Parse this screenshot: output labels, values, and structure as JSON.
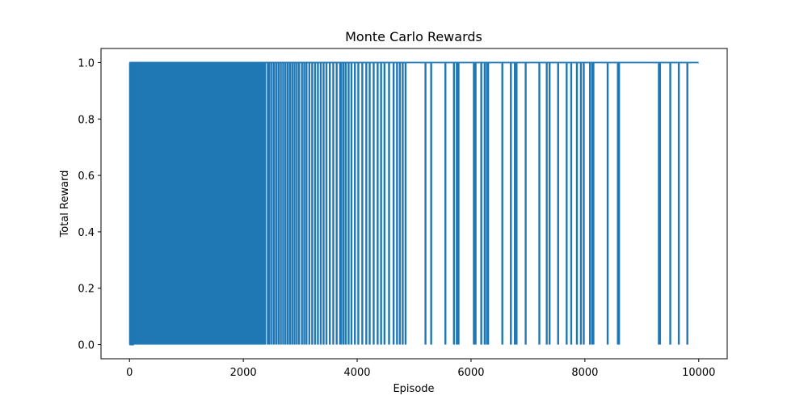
{
  "chart_data": {
    "type": "line",
    "title": "Monte Carlo Rewards",
    "xlabel": "Episode",
    "ylabel": "Total Reward",
    "xlim": [
      -500,
      10500
    ],
    "ylim": [
      -0.05,
      1.05
    ],
    "xticks": [
      0,
      2000,
      4000,
      6000,
      8000,
      10000
    ],
    "yticks": [
      0.0,
      0.2,
      0.4,
      0.6,
      0.8,
      1.0
    ],
    "xtick_labels": [
      "0",
      "2000",
      "4000",
      "6000",
      "8000",
      "10000"
    ],
    "ytick_labels": [
      "0.0",
      "0.2",
      "0.4",
      "0.6",
      "0.8",
      "1.0"
    ],
    "grid": false,
    "line_color": "#1f77b4",
    "series": [
      {
        "x_range": [
          0,
          9999
        ],
        "value_levels": [
          0,
          1
        ],
        "dense_fill_range": [
          80,
          2400
        ],
        "dip_episodes": [
          10,
          30,
          60,
          90,
          120,
          150,
          2430,
          2460,
          2500,
          2540,
          2580,
          2620,
          2660,
          2700,
          2740,
          2780,
          2820,
          2860,
          2900,
          2940,
          2980,
          3030,
          3070,
          3110,
          3160,
          3210,
          3260,
          3310,
          3360,
          3410,
          3460,
          3520,
          3580,
          3640,
          3700,
          3720,
          3760,
          3800,
          3850,
          3900,
          3960,
          4020,
          4090,
          4160,
          4220,
          4290,
          4360,
          4420,
          4480,
          4560,
          4640,
          4700,
          4750,
          4800,
          4850,
          5200,
          5300,
          5550,
          5700,
          5750,
          5780,
          6050,
          6080,
          6180,
          6240,
          6280,
          6300,
          6550,
          6700,
          6770,
          6800,
          6960,
          7200,
          7330,
          7380,
          7530,
          7680,
          7760,
          7860,
          7930,
          7980,
          8090,
          8130,
          8150,
          8400,
          8580,
          8600,
          9300,
          9320,
          9500,
          9650,
          9800
        ]
      }
    ]
  }
}
